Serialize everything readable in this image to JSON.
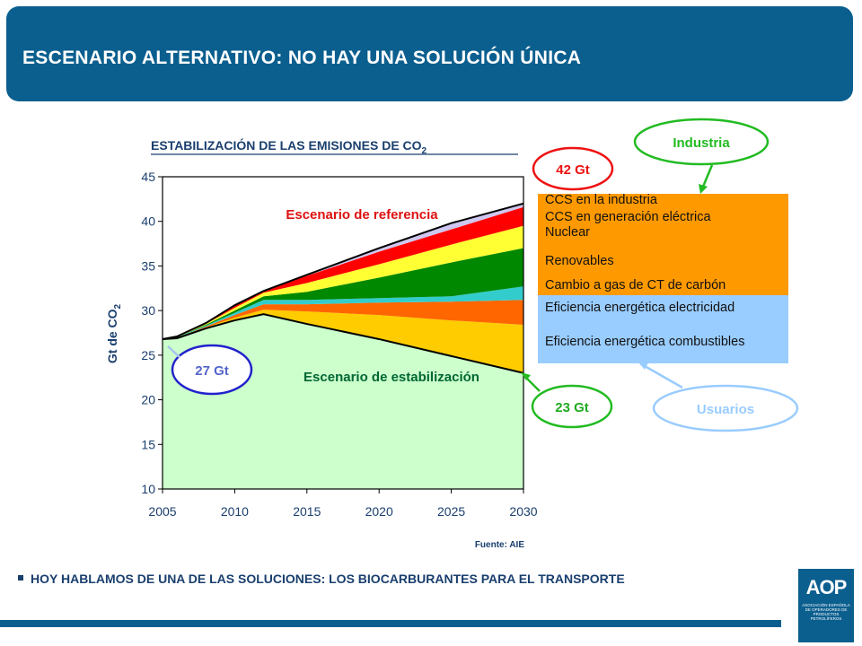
{
  "header": {
    "title": "ESCENARIO ALTERNATIVO: NO HAY UNA SOLUCIÓN ÚNICA"
  },
  "chart_data": {
    "type": "area",
    "title": "ESTABILIZACIÓN DE LAS EMISIONES DE CO",
    "title_subscript": "2",
    "ylabel": "Gt de CO",
    "ylabel_subscript": "2",
    "xlabel": "",
    "xlim": [
      2005,
      2030
    ],
    "ylim": [
      10,
      45
    ],
    "x_ticks": [
      "2005",
      "2010",
      "2015",
      "2020",
      "2025",
      "2030"
    ],
    "y_ticks": [
      "10",
      "15",
      "20",
      "25",
      "30",
      "35",
      "40",
      "45"
    ],
    "x": [
      2005,
      2006,
      2008,
      2010,
      2012,
      2015,
      2020,
      2025,
      2030
    ],
    "stabilization": [
      26.8,
      26.9,
      28.0,
      28.9,
      29.6,
      28.5,
      26.8,
      24.9,
      23.0
    ],
    "reference": [
      26.8,
      27.1,
      28.6,
      30.6,
      32.2,
      34.0,
      37.0,
      39.8,
      42.0
    ],
    "series": [
      {
        "name": "Eficiencia energética combustibles",
        "color": "#ffcc00",
        "values": [
          26.8,
          26.9,
          28.1,
          29.2,
          30.1,
          29.9,
          29.5,
          28.9,
          28.4
        ]
      },
      {
        "name": "Eficiencia energética electricidad",
        "color": "#ff6600",
        "values": [
          26.8,
          26.95,
          28.2,
          29.5,
          30.7,
          30.7,
          30.9,
          31.0,
          31.2
        ]
      },
      {
        "name": "Cambio a gas de CT de carbón",
        "color": "#33cccc",
        "values": [
          26.8,
          27.0,
          28.3,
          29.75,
          31.2,
          31.2,
          31.4,
          31.6,
          32.7
        ]
      },
      {
        "name": "Renovables",
        "color": "#008800",
        "values": [
          26.8,
          27.0,
          28.4,
          30.0,
          31.6,
          32.1,
          33.7,
          35.4,
          37.0
        ]
      },
      {
        "name": "Nuclear",
        "color": "#ffff33",
        "values": [
          26.8,
          27.05,
          28.5,
          30.3,
          32.0,
          33.1,
          35.2,
          37.4,
          39.5
        ]
      },
      {
        "name": "CCS en generación eléctrica",
        "color": "#ff0000",
        "values": [
          26.8,
          27.1,
          28.55,
          30.5,
          32.2,
          33.9,
          36.6,
          39.1,
          41.6
        ]
      },
      {
        "name": "CCS en la industria",
        "color": "#cfc7ef",
        "values": [
          26.8,
          27.1,
          28.6,
          30.6,
          32.2,
          34.0,
          37.0,
          39.8,
          42.0
        ]
      }
    ],
    "annotations": {
      "reference_label": "Escenario de referencia",
      "stabilization_label": "Escenario de estabilización",
      "start_value": "27 Gt",
      "end_reference": "42 Gt",
      "end_stabilization": "23 Gt"
    },
    "source": "Fuente: AIE"
  },
  "legend": {
    "items": [
      "CCS en la industria",
      "CCS en generación eléctrica",
      "Nuclear",
      "Renovables",
      "Cambio a gas de CT de carbón",
      "Eficiencia energética electricidad",
      "Eficiencia energética combustibles"
    ],
    "groups": {
      "industry": "Industria",
      "users": "Usuarios"
    },
    "colors": {
      "orange_box": "#ff9900",
      "blue_box": "#99ccff",
      "industry_oval": "#22bb22",
      "users_oval": "#99ccff"
    }
  },
  "bullet": {
    "text": "HOY HABLAMOS DE UNA DE LAS SOLUCIONES: LOS BIOCARBURANTES PARA EL TRANSPORTE"
  },
  "logo": {
    "main": "AOP",
    "small": "ASOCIACIÓN ESPAÑOLA DE OPERADORES DE PRODUCTOS PETROLÍFEROS"
  }
}
